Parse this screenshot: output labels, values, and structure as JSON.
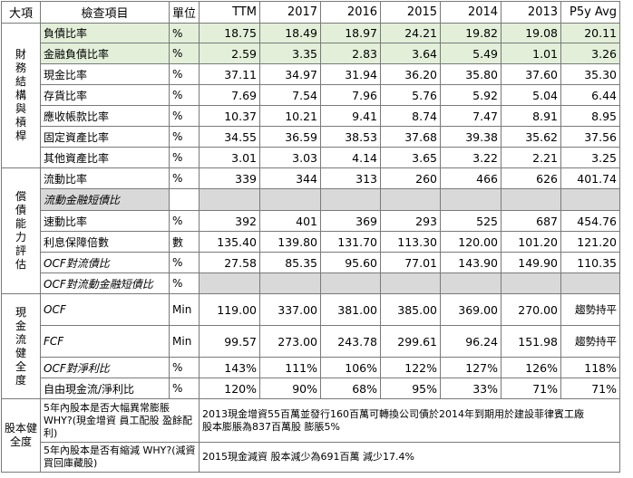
{
  "headers": [
    "大項",
    "檢查項目",
    "單位",
    "TTM",
    "2017",
    "2016",
    "2015",
    "2014",
    "2013",
    "P5y Avg"
  ],
  "categories": {
    "financial": "財務結構與槓桿",
    "solvency": "償債能力評估",
    "cashflow": "現金流健全度",
    "equity": "股本健全度"
  },
  "rows": {
    "r1": {
      "label": "負債比率",
      "unit": "%",
      "values": [
        "18.75",
        "18.49",
        "18.97",
        "24.21",
        "19.82",
        "19.08",
        "20.11"
      ]
    },
    "r2": {
      "label": "金融負債比率",
      "unit": "%",
      "values": [
        "2.59",
        "3.35",
        "2.83",
        "3.64",
        "5.49",
        "1.01",
        "3.26"
      ]
    },
    "r3": {
      "label": "現金比率",
      "unit": "%",
      "values": [
        "37.11",
        "34.97",
        "31.94",
        "36.20",
        "35.80",
        "37.60",
        "35.30"
      ]
    },
    "r4": {
      "label": "存貨比率",
      "unit": "%",
      "values": [
        "7.69",
        "7.54",
        "7.96",
        "5.76",
        "5.92",
        "5.04",
        "6.44"
      ]
    },
    "r5": {
      "label": "應收帳款比率",
      "unit": "%",
      "values": [
        "10.37",
        "10.21",
        "9.41",
        "8.74",
        "7.47",
        "8.91",
        "8.95"
      ]
    },
    "r6": {
      "label": "固定資產比率",
      "unit": "%",
      "values": [
        "34.55",
        "36.59",
        "38.53",
        "37.68",
        "39.38",
        "35.62",
        "37.56"
      ]
    },
    "r7": {
      "label": "其他資產比率",
      "unit": "%",
      "values": [
        "3.01",
        "3.03",
        "4.14",
        "3.65",
        "3.22",
        "2.21",
        "3.25"
      ]
    },
    "r8": {
      "label": "流動比率",
      "unit": "%",
      "values": [
        "339",
        "344",
        "313",
        "260",
        "466",
        "626",
        "401.74"
      ]
    },
    "r9": {
      "label": "流動金融短債比",
      "unit": "",
      "values": [
        "",
        "",
        "",
        "",
        "",
        "",
        ""
      ]
    },
    "r10": {
      "label": "速動比率",
      "unit": "%",
      "values": [
        "392",
        "401",
        "369",
        "293",
        "525",
        "687",
        "454.76"
      ]
    },
    "r11": {
      "label": "利息保障倍數",
      "unit": "數",
      "values": [
        "135.40",
        "139.80",
        "131.70",
        "113.30",
        "120.00",
        "101.20",
        "121.20"
      ]
    },
    "r12": {
      "label": "OCF對流債比",
      "unit": "%",
      "values": [
        "27.58",
        "85.35",
        "95.60",
        "77.01",
        "143.90",
        "149.90",
        "110.35"
      ]
    },
    "r13": {
      "label": "OCF對流動金融短債比",
      "unit": "%",
      "values": [
        "",
        "",
        "",
        "",
        "",
        "",
        ""
      ]
    },
    "r14": {
      "label": "OCF",
      "unit": "Min",
      "values": [
        "119.00",
        "337.00",
        "381.00",
        "385.00",
        "369.00",
        "270.00",
        "趨勢持平"
      ]
    },
    "r15": {
      "label": "FCF",
      "unit": "Min",
      "values": [
        "99.57",
        "273.00",
        "243.78",
        "299.61",
        "96.24",
        "151.98",
        "趨勢持平"
      ]
    },
    "r16": {
      "label": "OCF對淨利比",
      "unit": "%",
      "values": [
        "143%",
        "111%",
        "106%",
        "122%",
        "127%",
        "126%",
        "118%"
      ]
    },
    "r17": {
      "label": "自由現金流/淨利比",
      "unit": "%",
      "values": [
        "120%",
        "90%",
        "68%",
        "95%",
        "33%",
        "71%",
        "71%"
      ]
    }
  },
  "equity": {
    "q1": "5年內股本是否大幅異常膨脹 WHY?(現金增資 員工配股 盈餘配利)",
    "a1_line1": "2013現金增資55百萬並發行160百萬可轉換公司債於2014年到期用於建設菲律賓工廠",
    "a1_line2": "股本膨脹為837百萬股 膨脹5%",
    "q2": "5年內股本是否有縮減 WHY?(減資 買回庫藏股)",
    "a2": "2015現金減資 股本減少為691百萬 減少17.4%"
  },
  "colors": {
    "highlight": "#e3efd9",
    "blank": "#d9d9d9",
    "border": "#7a7a7a"
  }
}
